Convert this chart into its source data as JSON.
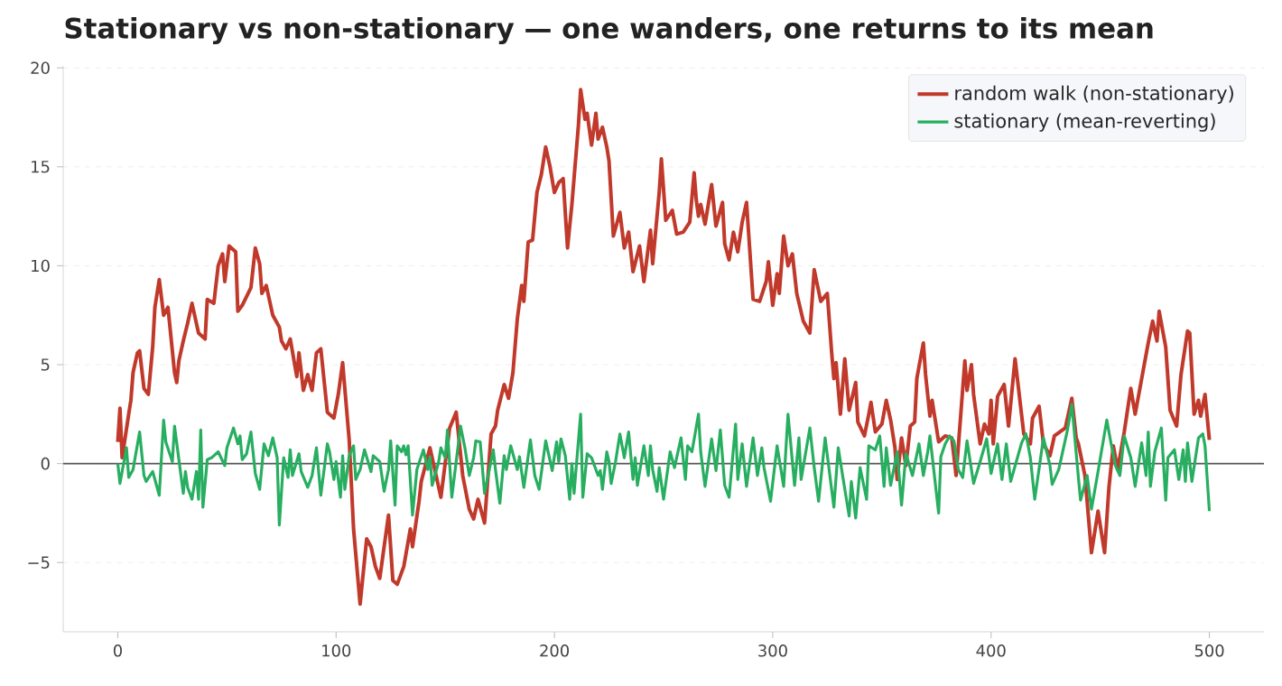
{
  "chart_data": {
    "type": "line",
    "title": "Stationary vs non-stationary — one wanders, one returns to its mean",
    "xlim": [
      -25,
      525
    ],
    "ylim": [
      -8.5,
      20.1
    ],
    "xticks": [
      0,
      100,
      200,
      300,
      400,
      500
    ],
    "yticks": [
      {
        "value": -5,
        "label": "−5"
      },
      0,
      5,
      10,
      15,
      20
    ],
    "grid": "y",
    "legend": "top right",
    "line_style": "solid",
    "ref_lines": [
      {
        "axis": "y",
        "value": 0,
        "color": "#555555"
      }
    ],
    "series": [
      {
        "name": "random walk (non-stationary)",
        "color": "#c0392b",
        "x": [
          0,
          1,
          2,
          5,
          6,
          7,
          9,
          10,
          12,
          14,
          16,
          17,
          19,
          21,
          23,
          26,
          27,
          28,
          30,
          32,
          34,
          37,
          40,
          41,
          44,
          46,
          48,
          49,
          51,
          54,
          55,
          57,
          61,
          63,
          65,
          66,
          68,
          71,
          74,
          75,
          77,
          79,
          82,
          83,
          85,
          87,
          89,
          91,
          93,
          96,
          99,
          101,
          103,
          106,
          108,
          111,
          114,
          116,
          118,
          120,
          124,
          126,
          128,
          131,
          134,
          135,
          138,
          139,
          143,
          148,
          152,
          155,
          158,
          161,
          163,
          165,
          168,
          171,
          173,
          174,
          177,
          179,
          181,
          183,
          185,
          186,
          188,
          190,
          192,
          194,
          196,
          198,
          200,
          202,
          204,
          206,
          208,
          211,
          212,
          214,
          215,
          217,
          219,
          220,
          222,
          224,
          225,
          227,
          230,
          232,
          234,
          236,
          239,
          241,
          244,
          245,
          248,
          249,
          251,
          254,
          256,
          259,
          262,
          264,
          265,
          266,
          267,
          269,
          272,
          274,
          277,
          278,
          280,
          282,
          284,
          286,
          288,
          291,
          294,
          297,
          298,
          300,
          302,
          303,
          305,
          307,
          309,
          311,
          314,
          317,
          319,
          322,
          325,
          327,
          328,
          329,
          331,
          333,
          335,
          338,
          339,
          342,
          344,
          345,
          347,
          350,
          352,
          354,
          356,
          357,
          359,
          361,
          363,
          365,
          366,
          367,
          369,
          370,
          372,
          373,
          376,
          379,
          382,
          384,
          388,
          389,
          391,
          392,
          395,
          397,
          399,
          400,
          401,
          403,
          406,
          408,
          411,
          415,
          418,
          419,
          422,
          424,
          427,
          429,
          434,
          437,
          439,
          440,
          443,
          446,
          449,
          452,
          454,
          456,
          458,
          461,
          464,
          466,
          468,
          470,
          472,
          474,
          476,
          477,
          480,
          482,
          485,
          487,
          490,
          491,
          493,
          495,
          496,
          498,
          500
        ],
        "values": [
          1.1,
          2.8,
          0.3,
          2.5,
          3.2,
          4.6,
          5.6,
          5.7,
          3.8,
          3.5,
          5.9,
          7.9,
          9.3,
          7.5,
          7.9,
          4.6,
          4.1,
          5.2,
          6.2,
          7.1,
          8.1,
          6.6,
          6.3,
          8.3,
          8.1,
          10.0,
          10.6,
          9.2,
          11.0,
          10.7,
          7.7,
          8.0,
          8.9,
          10.9,
          10.1,
          8.6,
          9.0,
          7.5,
          6.9,
          6.2,
          5.8,
          6.3,
          4.4,
          5.6,
          3.7,
          4.5,
          3.7,
          5.6,
          5.8,
          2.6,
          2.3,
          3.5,
          5.1,
          1.2,
          -3.3,
          -7.1,
          -3.8,
          -4.2,
          -5.2,
          -5.8,
          -2.6,
          -5.9,
          -6.1,
          -5.2,
          -3.3,
          -4.2,
          -1.9,
          -0.9,
          0.8,
          -1.7,
          1.8,
          2.6,
          -0.6,
          -2.3,
          -2.8,
          -1.8,
          -3.0,
          1.5,
          1.9,
          2.7,
          4.0,
          3.3,
          4.6,
          7.3,
          9.0,
          8.2,
          11.2,
          11.3,
          13.7,
          14.6,
          16.0,
          15.0,
          13.7,
          14.2,
          14.4,
          10.9,
          13.1,
          17.1,
          18.9,
          17.4,
          17.7,
          16.1,
          17.7,
          16.4,
          17.0,
          16.0,
          15.3,
          11.5,
          12.7,
          10.9,
          11.7,
          9.7,
          11.0,
          9.2,
          11.8,
          10.1,
          13.7,
          15.4,
          12.3,
          12.8,
          11.6,
          11.7,
          12.2,
          14.7,
          13.3,
          12.5,
          13.1,
          12.1,
          14.1,
          12.0,
          13.2,
          11.1,
          10.3,
          11.7,
          10.7,
          12.2,
          13.2,
          8.3,
          8.2,
          9.2,
          10.2,
          8.0,
          9.6,
          8.6,
          11.5,
          10.0,
          10.6,
          8.6,
          7.2,
          6.6,
          9.8,
          8.2,
          8.6,
          5.6,
          4.3,
          5.1,
          2.5,
          5.3,
          2.7,
          4.1,
          2.1,
          1.4,
          2.5,
          3.1,
          1.6,
          2.0,
          3.2,
          2.2,
          0.8,
          -0.8,
          1.3,
          -0.1,
          1.9,
          2.1,
          4.3,
          4.9,
          6.1,
          4.5,
          2.4,
          3.2,
          1.1,
          1.4,
          1.3,
          -0.6,
          5.2,
          3.7,
          5.0,
          3.5,
          1.0,
          2.0,
          1.5,
          3.2,
          1.0,
          3.4,
          4.0,
          1.9,
          5.3,
          1.5,
          1.0,
          2.3,
          2.9,
          1.0,
          0.4,
          1.4,
          1.8,
          3.3,
          1.3,
          1.0,
          -0.6,
          -4.5,
          -2.4,
          -4.5,
          -1.2,
          0.9,
          -0.3,
          1.6,
          3.8,
          2.5,
          3.7,
          4.9,
          6.1,
          7.2,
          6.2,
          7.7,
          5.9,
          2.7,
          1.9,
          4.5,
          6.7,
          6.6,
          2.5,
          3.2,
          2.4,
          3.5,
          1.2
        ]
      },
      {
        "name": "stationary (mean-reverting)",
        "color": "#27ae60",
        "x": [
          0,
          1,
          4,
          5,
          7,
          10,
          12,
          13,
          16,
          19,
          21,
          22,
          25,
          26,
          30,
          31,
          32,
          34,
          36,
          37,
          38,
          39,
          41,
          43,
          46,
          49,
          50,
          53,
          55,
          56,
          57,
          59,
          61,
          63,
          65,
          67,
          69,
          71,
          73,
          74,
          76,
          78,
          79,
          80,
          83,
          84,
          87,
          89,
          91,
          93,
          96,
          97,
          99,
          100,
          102,
          103,
          104,
          106,
          108,
          109,
          111,
          113,
          116,
          117,
          120,
          122,
          124,
          125,
          127,
          128,
          130,
          131,
          132,
          133,
          135,
          137,
          140,
          142,
          143,
          144,
          147,
          148,
          150,
          151,
          153,
          155,
          157,
          159,
          161,
          163,
          164,
          166,
          168,
          172,
          173,
          175,
          177,
          178,
          180,
          183,
          184,
          186,
          189,
          191,
          193,
          196,
          199,
          201,
          202,
          203,
          205,
          207,
          208,
          209,
          212,
          213,
          215,
          217,
          220,
          221,
          222,
          224,
          225,
          226,
          228,
          230,
          232,
          234,
          236,
          237,
          238,
          241,
          243,
          244,
          245,
          247,
          248,
          250,
          253,
          255,
          258,
          260,
          261,
          263,
          266,
          267,
          269,
          272,
          274,
          276,
          278,
          280,
          283,
          284,
          286,
          288,
          291,
          293,
          295,
          296,
          299,
          302,
          305,
          307,
          310,
          312,
          313,
          317,
          319,
          321,
          324,
          328,
          330,
          332,
          335,
          336,
          338,
          340,
          343,
          344,
          347,
          349,
          351,
          352,
          354,
          357,
          359,
          361,
          364,
          367,
          369,
          371,
          372,
          376,
          377,
          379,
          381,
          383,
          385,
          387,
          389,
          392,
          395,
          398,
          400,
          403,
          405,
          407,
          409,
          414,
          416,
          418,
          420,
          424,
          427,
          428,
          431,
          435,
          437,
          440,
          441,
          444,
          446,
          449,
          453,
          455,
          457,
          459,
          461,
          464,
          466,
          469,
          471,
          472,
          473,
          475,
          478,
          480,
          481,
          484,
          486,
          488,
          489,
          490,
          492,
          495,
          497,
          498,
          500
        ],
        "values": [
          0.0,
          -1.0,
          0.8,
          -0.7,
          -0.3,
          1.6,
          -0.6,
          -0.9,
          -0.4,
          -1.6,
          2.2,
          1.1,
          0.1,
          1.9,
          -1.5,
          -0.4,
          -1.2,
          -1.8,
          -0.4,
          -1.8,
          1.7,
          -2.2,
          0.2,
          0.3,
          0.6,
          -0.1,
          0.8,
          1.8,
          1.0,
          1.4,
          0.2,
          0.5,
          1.6,
          -0.5,
          -1.3,
          1.0,
          0.4,
          1.3,
          0.3,
          -3.1,
          0.3,
          -0.7,
          0.7,
          -0.6,
          0.5,
          -0.4,
          -1.2,
          -0.6,
          0.8,
          -1.6,
          1.0,
          0.6,
          -0.8,
          0.1,
          -1.7,
          0.4,
          -1.3,
          0.4,
          0.9,
          -0.8,
          -0.3,
          0.7,
          -0.4,
          0.4,
          0.1,
          -1.4,
          -0.3,
          1.15,
          -2.1,
          0.9,
          0.6,
          0.9,
          0.45,
          0.9,
          -2.6,
          -0.3,
          0.7,
          -0.3,
          0.35,
          -1.1,
          0.1,
          0.8,
          0.3,
          1.7,
          -1.7,
          0.1,
          1.9,
          0.8,
          -0.6,
          0.3,
          1.15,
          1.1,
          -1.5,
          0.7,
          -0.3,
          -2.0,
          0.4,
          -0.3,
          0.9,
          -0.3,
          0.35,
          -1.2,
          1.2,
          -0.6,
          -1.3,
          1.15,
          -0.35,
          1.1,
          0.1,
          1.25,
          0.4,
          -1.8,
          0.0,
          -1.5,
          2.5,
          -1.7,
          0.5,
          0.3,
          -0.6,
          -0.35,
          -1.3,
          0.6,
          0.1,
          -1.0,
          0.1,
          1.5,
          0.3,
          1.6,
          -0.8,
          0.3,
          -1.1,
          0.9,
          -0.6,
          0.9,
          -0.3,
          -1.4,
          -0.2,
          -1.8,
          0.6,
          -0.2,
          1.3,
          -0.8,
          0.9,
          0.6,
          2.5,
          0.6,
          -1.15,
          1.25,
          -0.35,
          1.7,
          -1.1,
          -1.7,
          2.0,
          -0.8,
          1.0,
          -1.15,
          1.3,
          -0.6,
          0.8,
          -0.2,
          -1.9,
          0.9,
          -1.15,
          2.5,
          -1.1,
          1.3,
          -0.8,
          1.8,
          -0.2,
          -1.9,
          1.3,
          -2.2,
          0.8,
          -0.6,
          -2.65,
          -0.9,
          -2.75,
          -0.2,
          -1.8,
          0.9,
          0.7,
          1.4,
          -1.15,
          0.8,
          -1.1,
          0.6,
          -2.1,
          0.5,
          -0.6,
          1.0,
          -0.6,
          0.6,
          1.4,
          -2.5,
          0.35,
          1.0,
          1.4,
          1.15,
          -0.3,
          -0.7,
          1.15,
          -1.0,
          0.1,
          1.25,
          -0.5,
          1.0,
          -0.8,
          1.0,
          -0.9,
          1.05,
          1.5,
          0.3,
          -1.8,
          1.3,
          -0.1,
          -1.05,
          -0.3,
          1.7,
          3.0,
          -0.7,
          -1.85,
          -0.6,
          -2.3,
          -0.4,
          2.2,
          1.0,
          -0.1,
          -0.6,
          1.4,
          0.3,
          -1.15,
          1.05,
          -0.6,
          1.6,
          -1.15,
          0.6,
          1.8,
          -1.85,
          0.3,
          0.7,
          -0.8,
          0.7,
          -0.9,
          1.05,
          -0.9,
          1.3,
          1.5,
          0.9,
          -2.4
        ]
      }
    ]
  }
}
